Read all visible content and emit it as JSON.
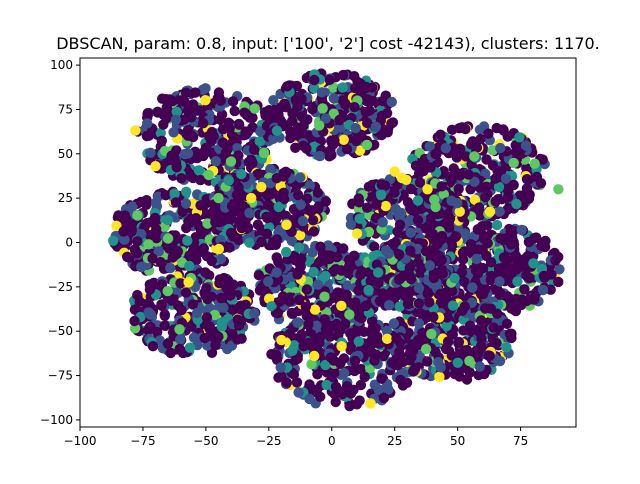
{
  "chart_data": {
    "type": "scatter",
    "title": "DBSCAN, param: 0.8, input: ['100', '2'] cost -42143), clusters: 1170.",
    "xlabel": "",
    "ylabel": "",
    "xlim": [
      -100,
      97
    ],
    "ylim": [
      -104,
      104
    ],
    "x_ticks": [
      -100,
      -75,
      -50,
      -25,
      0,
      25,
      50,
      75
    ],
    "x_tick_labels": [
      "−100",
      "−75",
      "−50",
      "−25",
      "0",
      "25",
      "50",
      "75"
    ],
    "y_ticks": [
      100,
      75,
      50,
      25,
      0,
      -25,
      -50,
      -75,
      -100
    ],
    "y_tick_labels": [
      "100",
      "75",
      "50",
      "25",
      "0",
      "−25",
      "−50",
      "−75",
      "−100"
    ],
    "grid": false,
    "colormap": [
      "#440154",
      "#3b528b",
      "#21918c",
      "#5ec962",
      "#fde725"
    ],
    "blobs": [
      {
        "cx": -50,
        "cy": 60,
        "r": 27
      },
      {
        "cx": 0,
        "cy": 72,
        "r": 24
      },
      {
        "cx": 58,
        "cy": 40,
        "r": 26
      },
      {
        "cx": -62,
        "cy": 5,
        "r": 24
      },
      {
        "cx": 65,
        "cy": -15,
        "r": 25
      },
      {
        "cx": -55,
        "cy": -40,
        "r": 24
      },
      {
        "cx": 48,
        "cy": -55,
        "r": 23
      },
      {
        "cx": 5,
        "cy": -65,
        "r": 28
      },
      {
        "cx": -25,
        "cy": 20,
        "r": 22
      },
      {
        "cx": 30,
        "cy": 15,
        "r": 22
      },
      {
        "cx": -5,
        "cy": -25,
        "r": 24
      },
      {
        "cx": 30,
        "cy": -20,
        "r": 18
      }
    ],
    "highlight_points": [
      {
        "x": -32,
        "y": 25,
        "c": 4
      },
      {
        "x": -18,
        "y": 10,
        "c": 4
      },
      {
        "x": 10,
        "y": 5,
        "c": 4
      },
      {
        "x": 25,
        "y": 40,
        "c": 4
      },
      {
        "x": -20,
        "y": -55,
        "c": 4
      },
      {
        "x": -7,
        "y": -64,
        "c": 4
      },
      {
        "x": 38,
        "y": 30,
        "c": 4
      },
      {
        "x": -5,
        "y": 66,
        "c": 3
      },
      {
        "x": 14,
        "y": 55,
        "c": 3
      },
      {
        "x": -70,
        "y": 43,
        "c": 4
      },
      {
        "x": 90,
        "y": 30,
        "c": 3
      },
      {
        "x": -45,
        "y": 25,
        "c": 3
      }
    ]
  }
}
